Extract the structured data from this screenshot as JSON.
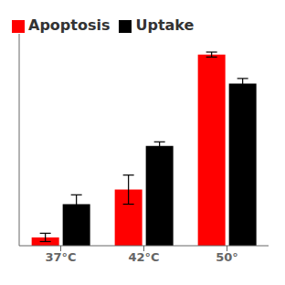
{
  "chart_data": {
    "type": "bar",
    "categories": [
      "37°C",
      "42°C",
      "50°"
    ],
    "series": [
      {
        "name": "Apoptosis",
        "color": "#ff0000",
        "values": [
          4,
          27,
          92
        ],
        "errors": [
          2.0,
          7,
          1.2
        ]
      },
      {
        "name": "Uptake",
        "color": "#000000",
        "values": [
          20,
          48,
          78
        ],
        "errors": [
          4.5,
          2.0,
          2.5
        ]
      }
    ],
    "ylim": [
      0,
      102
    ],
    "yticks": [],
    "tick_labels": "x",
    "legend": "upper left",
    "grid": false
  }
}
